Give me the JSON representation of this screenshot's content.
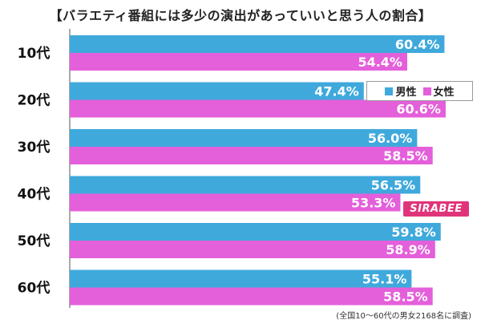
{
  "title": "【バラエティ番組には多少の演出があっていいと思う人の割合】",
  "footnote": "(全国10～60代の男女2168名に調査)",
  "legend": {
    "male": "男性",
    "female": "女性"
  },
  "logo_text": "SIRABEE",
  "colors": {
    "male": "#3fa9dc",
    "female": "#e45fda"
  },
  "chart_data": {
    "type": "bar",
    "orientation": "horizontal",
    "categories": [
      "10代",
      "20代",
      "30代",
      "40代",
      "50代",
      "60代"
    ],
    "series": [
      {
        "name": "男性",
        "values": [
          60.4,
          47.4,
          56.0,
          56.5,
          59.8,
          55.1
        ]
      },
      {
        "name": "女性",
        "values": [
          54.4,
          60.6,
          58.5,
          53.3,
          58.9,
          58.5
        ]
      }
    ],
    "value_labels": {
      "male": [
        "60.4%",
        "47.4%",
        "56.0%",
        "56.5%",
        "59.8%",
        "55.1%"
      ],
      "female": [
        "54.4%",
        "60.6%",
        "58.5%",
        "53.3%",
        "58.9%",
        "58.5%"
      ]
    },
    "xlim": [
      0,
      65
    ],
    "legend_position": "top-right",
    "grid": false
  }
}
